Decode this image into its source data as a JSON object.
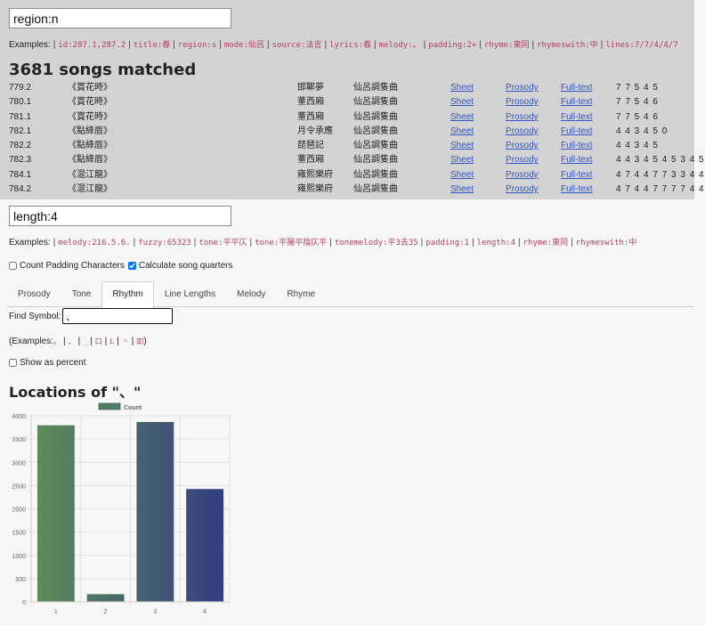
{
  "search": {
    "value": "region:n",
    "examples_label": "Examples:",
    "examples": [
      "id:287.1,287.2",
      "title:春",
      "region:s",
      "mode:仙呂",
      "source:法言",
      "lyrics:春",
      "melody:。",
      "padding:2+",
      "rhyme:東同",
      "rhymeswith:中",
      "lines:7/7/4/4/7"
    ],
    "result_count": "3681 songs matched"
  },
  "songs": [
    {
      "id": "779.2",
      "title": "《賞花時》",
      "author": "邯鄲夢",
      "mode": "仙呂調隻曲",
      "sheet": "Sheet",
      "prosody": "Prosody",
      "fulltext": "Full-text",
      "lines": "7 7 5 4 5"
    },
    {
      "id": "780.1",
      "title": "《賞花時》",
      "author": "董西廂",
      "mode": "仙呂調隻曲",
      "sheet": "Sheet",
      "prosody": "Prosody",
      "fulltext": "Full-text",
      "lines": "7 7 5 4 6"
    },
    {
      "id": "781.1",
      "title": "《賞花時》",
      "author": "董西廂",
      "mode": "仙呂調隻曲",
      "sheet": "Sheet",
      "prosody": "Prosody",
      "fulltext": "Full-text",
      "lines": "7 7 5 4 6"
    },
    {
      "id": "782.1",
      "title": "《點絳唇》",
      "author": "月令承應",
      "mode": "仙呂調隻曲",
      "sheet": "Sheet",
      "prosody": "Prosody",
      "fulltext": "Full-text",
      "lines": "4 4 3 4 5 0"
    },
    {
      "id": "782.2",
      "title": "《點絳唇》",
      "author": "琵琶記",
      "mode": "仙呂調隻曲",
      "sheet": "Sheet",
      "prosody": "Prosody",
      "fulltext": "Full-text",
      "lines": "4 4 3 4 5"
    },
    {
      "id": "782.3",
      "title": "《點絳唇》",
      "author": "董西廂",
      "mode": "仙呂調隻曲",
      "sheet": "Sheet",
      "prosody": "Prosody",
      "fulltext": "Full-text",
      "lines": "4 4 3 4 5 4 5 3 4 5"
    },
    {
      "id": "784.1",
      "title": "《混江龍》",
      "author": "雍熙樂府",
      "mode": "仙呂調隻曲",
      "sheet": "Sheet",
      "prosody": "Prosody",
      "fulltext": "Full-text",
      "lines": "4 7 4 4 7 7 3 3 4 4"
    },
    {
      "id": "784.2",
      "title": "《混江龍》",
      "author": "雍熙樂府",
      "mode": "仙呂調隻曲",
      "sheet": "Sheet",
      "prosody": "Prosody",
      "fulltext": "Full-text",
      "lines": "4 7 4 4 7 7 7 7 4 4"
    }
  ],
  "filter": {
    "value": "length:4",
    "examples_label": "Examples:",
    "examples": [
      "melody:216.5.6.",
      "fuzzy:65323",
      "tone:平平仄",
      "tone:平陽平陰仄平",
      "tonemelody:平3去35",
      "padding:1",
      "length:4",
      "rhyme:東同",
      "rhymeswith:中"
    ],
    "count_padding_label": "Count Padding Characters",
    "count_padding_checked": false,
    "calc_quarters_label": "Calculate song quarters",
    "calc_quarters_checked": true
  },
  "tabs": [
    {
      "label": "Prosody",
      "active": false
    },
    {
      "label": "Tone",
      "active": false
    },
    {
      "label": "Rhythm",
      "active": true
    },
    {
      "label": "Line Lengths",
      "active": false
    },
    {
      "label": "Melody",
      "active": false
    },
    {
      "label": "Rhyme",
      "active": false
    }
  ],
  "rhythm": {
    "find_label": "Find Symbol:",
    "find_value": "、",
    "examples_prefix": "(Examples:",
    "examples": [
      "。",
      "、",
      "_",
      "口",
      "L",
      "丶",
      "吅"
    ],
    "examples_suffix": ")",
    "show_percent_label": "Show as percent",
    "show_percent_checked": false,
    "locations_title": "Locations of \"、\""
  },
  "chart_data": {
    "type": "bar",
    "categories": [
      "1",
      "2",
      "3",
      "4"
    ],
    "series": [
      {
        "name": "Count",
        "values": [
          3790,
          160,
          3860,
          2420
        ]
      }
    ],
    "ylim": [
      0,
      4000
    ],
    "yticks": [
      0,
      500,
      1000,
      1500,
      2000,
      2500,
      3000,
      3500,
      4000
    ],
    "grid": true,
    "legend": "top",
    "colors": [
      "#5b8a5b",
      "#4f7f63",
      "#47606c",
      "#343f80"
    ],
    "gradient": {
      "start": "#5e8e58",
      "end": "#323b82"
    }
  }
}
